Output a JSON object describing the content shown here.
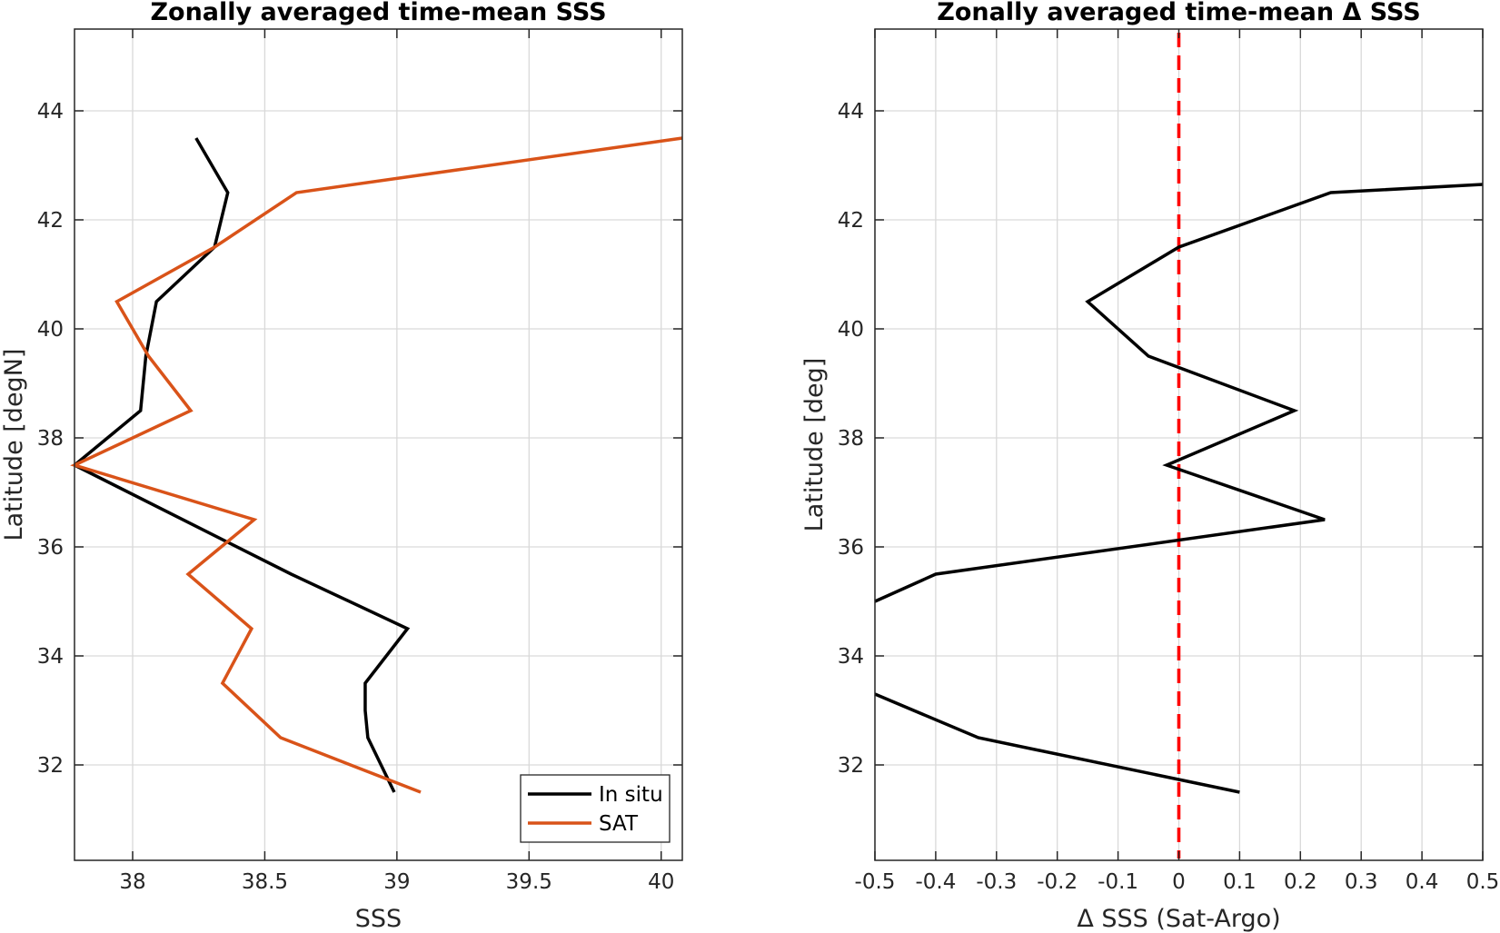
{
  "chart_data": [
    {
      "type": "line",
      "title": "Zonally averaged time-mean SSS",
      "xlabel": "SSS",
      "ylabel": "Latitude [degN]",
      "xlim": [
        37.78,
        40.08
      ],
      "ylim": [
        30.25,
        45.5
      ],
      "xticks": [
        38,
        38.5,
        39,
        39.5,
        40
      ],
      "xtick_labels": [
        "38",
        "38.5",
        "39",
        "39.5",
        "40"
      ],
      "yticks": [
        32,
        34,
        36,
        38,
        40,
        42,
        44
      ],
      "ytick_labels": [
        "32",
        "34",
        "36",
        "38",
        "40",
        "42",
        "44"
      ],
      "grid": true,
      "legend_position": "bottom-right",
      "series": [
        {
          "name": "In situ",
          "color": "#000000",
          "x": [
            38.24,
            38.36,
            38.31,
            38.09,
            38.05,
            38.03,
            37.78,
            38.6,
            39.04,
            38.88,
            38.88,
            38.89,
            38.99
          ],
          "y": [
            43.5,
            42.5,
            41.5,
            40.5,
            39.5,
            38.5,
            37.5,
            35.5,
            34.5,
            33.5,
            33.0,
            32.5,
            31.5
          ]
        },
        {
          "name": "SAT",
          "color": "#D95319",
          "x": [
            40.08,
            38.62,
            38.31,
            37.94,
            38.06,
            38.22,
            37.78,
            38.46,
            38.21,
            38.45,
            38.34,
            38.56,
            39.09
          ],
          "y": [
            43.5,
            42.5,
            41.5,
            40.5,
            39.5,
            38.5,
            37.5,
            36.5,
            35.5,
            34.5,
            33.5,
            32.5,
            31.5
          ]
        }
      ]
    },
    {
      "type": "line",
      "title": "Zonally averaged time-mean Δ SSS",
      "xlabel": "Δ SSS (Sat-Argo)",
      "ylabel": "Latitude [deg]",
      "xlim": [
        -0.5,
        0.5
      ],
      "ylim": [
        30.25,
        45.5
      ],
      "xticks": [
        -0.5,
        -0.4,
        -0.3,
        -0.2,
        -0.1,
        0,
        0.1,
        0.2,
        0.3,
        0.4,
        0.5
      ],
      "xtick_labels": [
        "-0.5",
        "-0.4",
        "-0.3",
        "-0.2",
        "-0.1",
        "0",
        "0.1",
        "0.2",
        "0.3",
        "0.4",
        "0.5"
      ],
      "yticks": [
        32,
        34,
        36,
        38,
        40,
        42,
        44
      ],
      "ytick_labels": [
        "32",
        "34",
        "36",
        "38",
        "40",
        "42",
        "44"
      ],
      "grid": true,
      "series": [
        {
          "color": "#000000",
          "x": [
            0.5,
            0.25,
            0.0,
            -0.15,
            -0.05,
            0.19,
            -0.02,
            0.24,
            -0.4,
            -0.5
          ],
          "y": [
            42.65,
            42.5,
            41.5,
            40.5,
            39.5,
            38.5,
            37.5,
            36.5,
            35.5,
            35.0
          ]
        },
        {
          "color": "#000000",
          "x": [
            -0.5,
            -0.33,
            0.1
          ],
          "y": [
            33.3,
            32.5,
            31.5
          ]
        }
      ],
      "reference_line": {
        "x": 0,
        "color": "#FF0000",
        "style": "dashed"
      }
    }
  ]
}
